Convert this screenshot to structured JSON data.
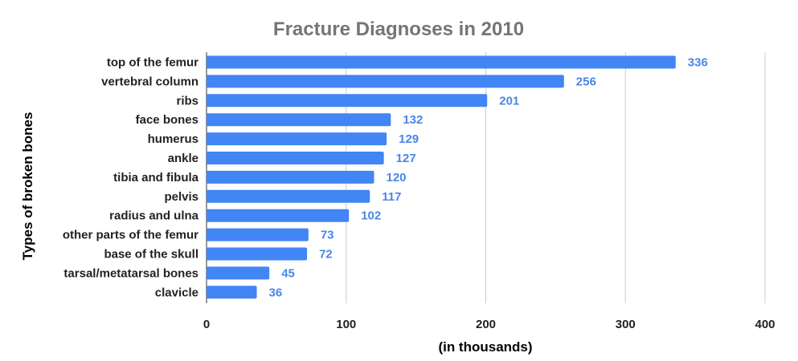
{
  "chart_data": {
    "type": "bar",
    "orientation": "horizontal",
    "title": "Fracture Diagnoses in 2010",
    "xlabel": "(in thousands)",
    "ylabel": "Types of broken bones",
    "categories": [
      "top of the femur",
      "vertebral column",
      "ribs",
      "face bones",
      "humerus",
      "ankle",
      "tibia and fibula",
      "pelvis",
      "radius and ulna",
      "other parts of the femur",
      "base of the skull",
      "tarsal/metatarsal bones",
      "clavicle"
    ],
    "values": [
      336,
      256,
      201,
      132,
      129,
      127,
      120,
      117,
      102,
      73,
      72,
      45,
      36
    ],
    "xlim": [
      0,
      400
    ],
    "xticks": [
      "0",
      "100",
      "200",
      "300",
      "400"
    ],
    "grid": true,
    "legend": "none",
    "bar_color": "#4285f4",
    "label_color": "#4a86e8"
  }
}
